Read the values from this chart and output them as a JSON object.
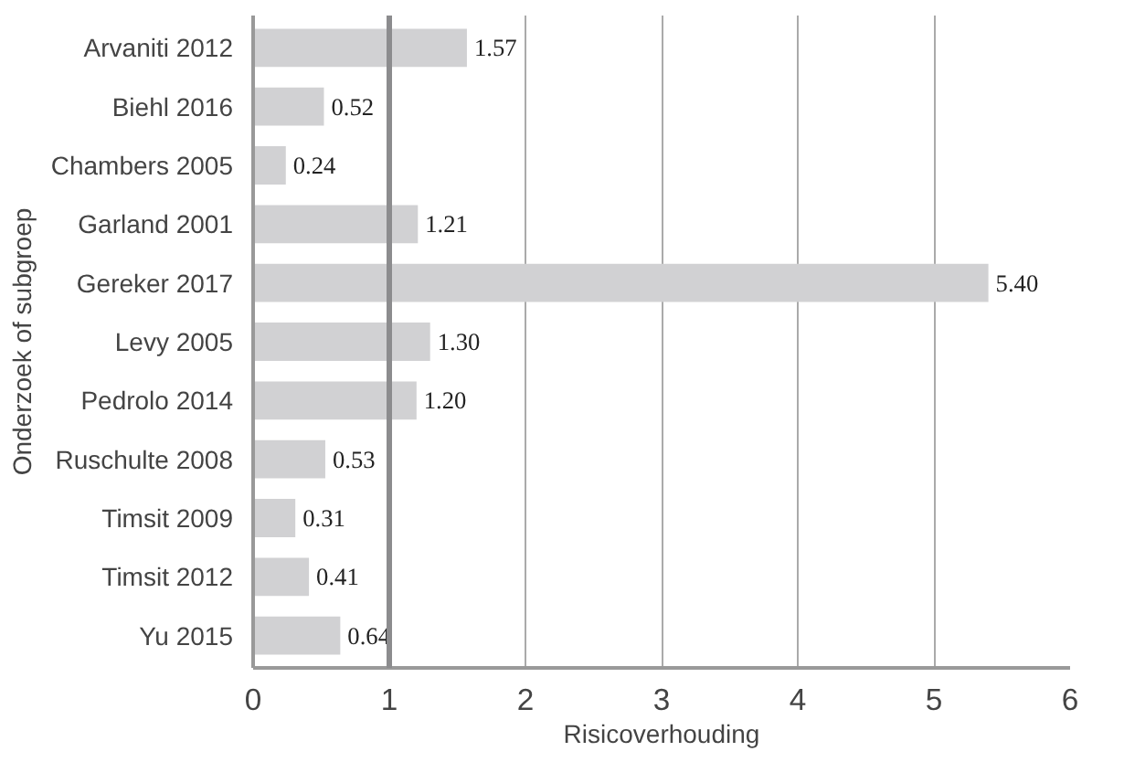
{
  "chart_data": {
    "type": "bar",
    "orientation": "horizontal",
    "xlabel": "Risicoverhouding",
    "ylabel": "Onderzoek of subgroep",
    "categories": [
      "Arvaniti 2012",
      "Biehl 2016",
      "Chambers 2005",
      "Garland 2001",
      "Gereker 2017",
      "Levy 2005",
      "Pedrolo 2014",
      "Ruschulte 2008",
      "Timsit 2009",
      "Timsit 2012",
      "Yu 2015"
    ],
    "values": [
      1.57,
      0.52,
      0.24,
      1.21,
      5.4,
      1.3,
      1.2,
      0.53,
      0.31,
      0.41,
      0.64
    ],
    "value_labels": [
      "1.57",
      "0.52",
      "0.24",
      "1.21",
      "5.40",
      "1.30",
      "1.20",
      "0.53",
      "0.31",
      "0.41",
      "0.64"
    ],
    "color": "#d1d1d3",
    "xlim": [
      0,
      6
    ],
    "xticks": [
      0,
      1,
      2,
      3,
      4,
      5,
      6
    ],
    "grid": "x",
    "ref_lines": [
      {
        "axis": "x",
        "value": 1,
        "color": "#8c8c8e"
      }
    ]
  }
}
